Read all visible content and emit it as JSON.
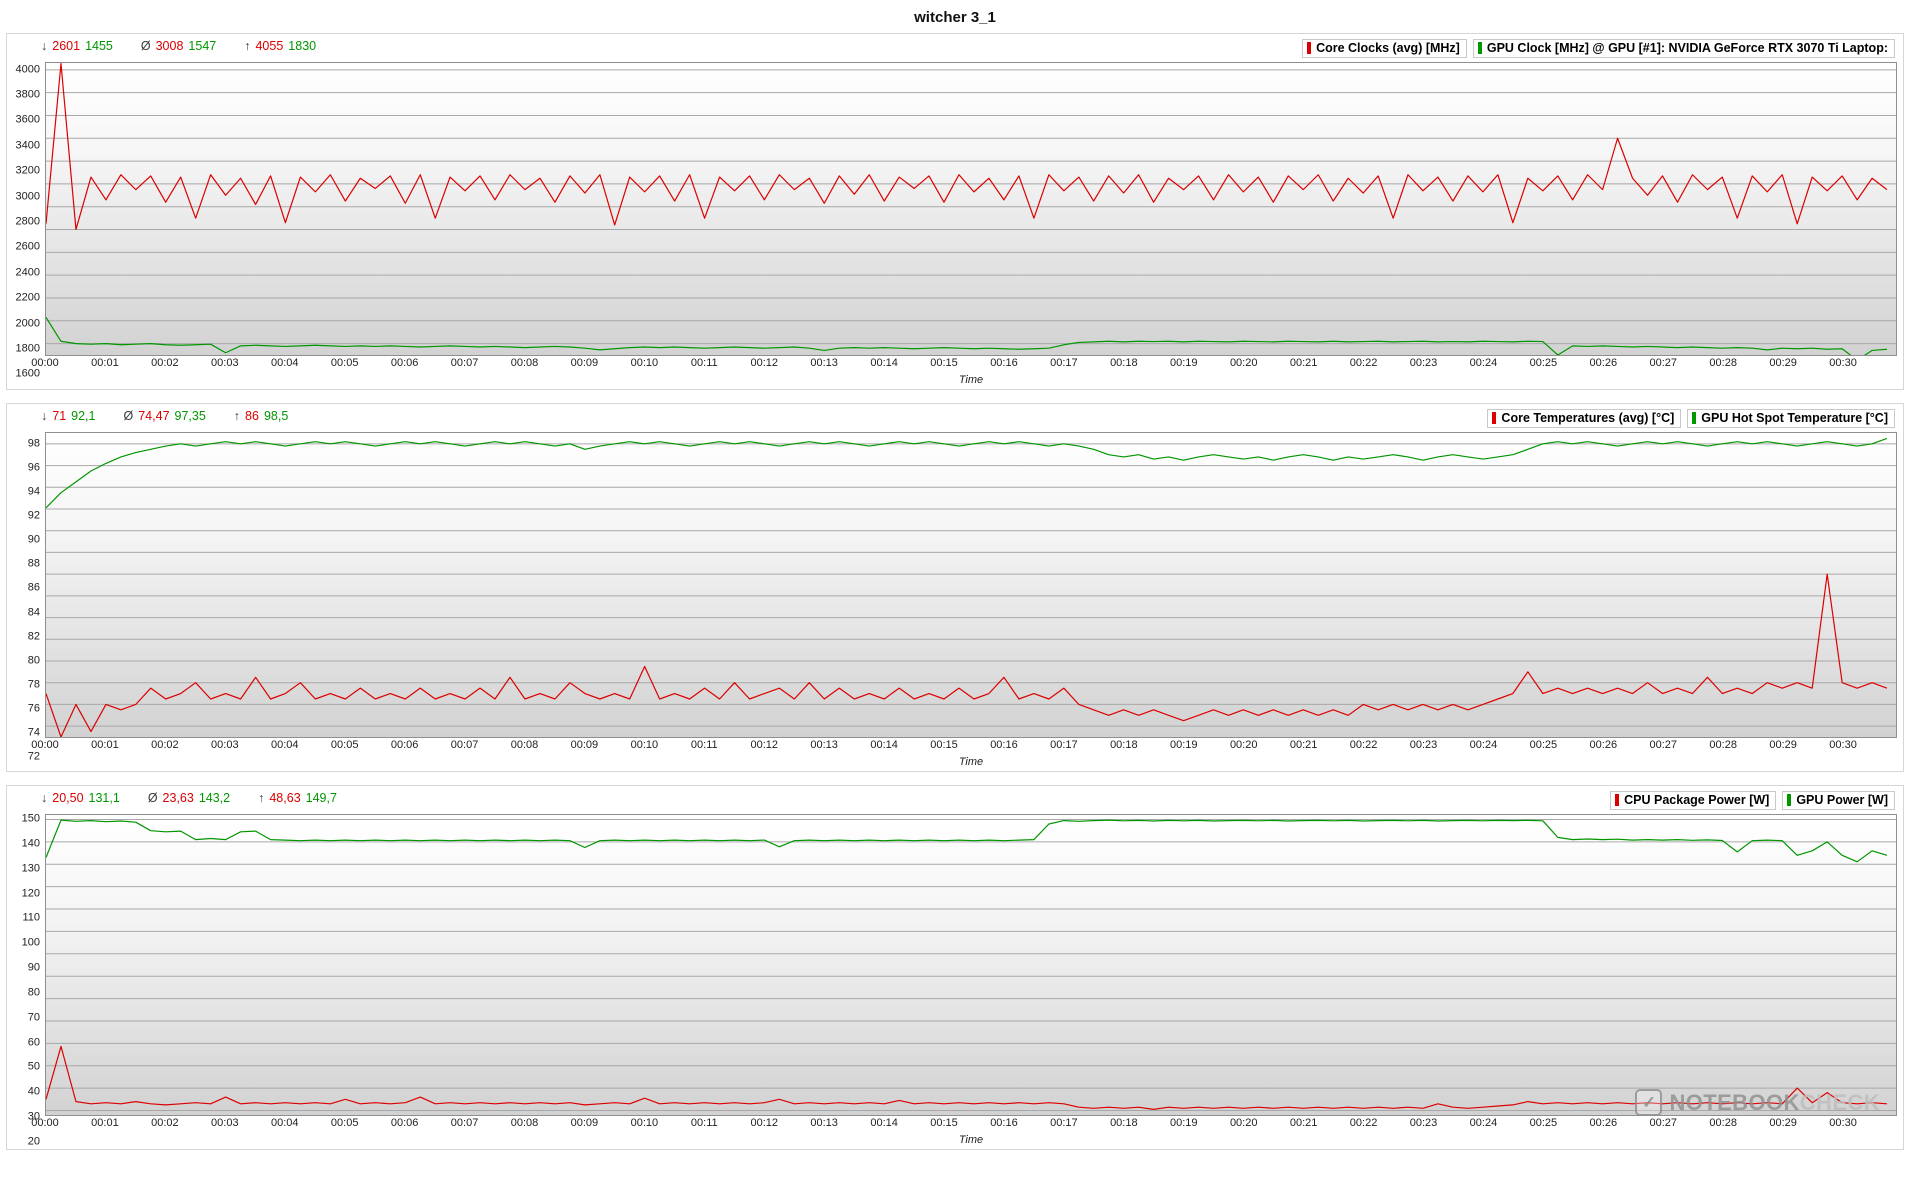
{
  "title": "witcher 3_1",
  "symbols": {
    "min": "↓",
    "avg": "Ø",
    "max": "↑"
  },
  "colors": {
    "red": "#dc0000",
    "green": "#009600",
    "grid": "#a8a8a8"
  },
  "watermark": {
    "logo_glyph": "✓",
    "brand_bold": "NOTEBOOK",
    "brand_light": "CHECK"
  },
  "chart_data": [
    {
      "type": "line",
      "title": "GPU and CPU core clocks",
      "xlabel": "Time",
      "grid": "horizontal",
      "legend_position": "top-right",
      "x_start": 0,
      "x_step": 0.25,
      "x_range": [
        0,
        30.9
      ],
      "x_axis_ticks": [
        "00:00",
        "00:01",
        "00:02",
        "00:03",
        "00:04",
        "00:05",
        "00:06",
        "00:07",
        "00:08",
        "00:09",
        "00:10",
        "00:11",
        "00:12",
        "00:13",
        "00:14",
        "00:15",
        "00:16",
        "00:17",
        "00:18",
        "00:19",
        "00:20",
        "00:21",
        "00:22",
        "00:23",
        "00:24",
        "00:25",
        "00:26",
        "00:27",
        "00:28",
        "00:29",
        "00:30"
      ],
      "y_range": [
        1500,
        4060
      ],
      "y_ticks": [
        1600,
        1800,
        2000,
        2200,
        2400,
        2600,
        2800,
        3000,
        3200,
        3400,
        3600,
        3800,
        4000
      ],
      "stats": {
        "min_red": "2601",
        "min_green": "1455",
        "avg_red": "3008",
        "avg_green": "1547",
        "max_red": "4055",
        "max_green": "1830"
      },
      "series": [
        {
          "name": "Core Clocks (avg) [MHz]",
          "color": "#dc0000",
          "values": [
            2650,
            4055,
            2601,
            3060,
            2860,
            3080,
            2950,
            3070,
            2840,
            3060,
            2700,
            3080,
            2900,
            3050,
            2820,
            3070,
            2660,
            3060,
            2930,
            3080,
            2850,
            3050,
            2960,
            3070,
            2830,
            3080,
            2700,
            3060,
            2940,
            3070,
            2860,
            3080,
            2950,
            3050,
            2840,
            3070,
            2920,
            3080,
            2640,
            3060,
            2930,
            3070,
            2850,
            3080,
            2700,
            3060,
            2940,
            3070,
            2860,
            3080,
            2950,
            3050,
            2830,
            3070,
            2910,
            3080,
            2850,
            3060,
            2960,
            3070,
            2840,
            3080,
            2930,
            3050,
            2860,
            3070,
            2700,
            3080,
            2940,
            3060,
            2850,
            3070,
            2920,
            3080,
            2840,
            3050,
            2950,
            3070,
            2860,
            3080,
            2930,
            3060,
            2840,
            3070,
            2950,
            3080,
            2850,
            3050,
            2920,
            3070,
            2700,
            3080,
            2940,
            3060,
            2850,
            3070,
            2930,
            3080,
            2660,
            3050,
            2940,
            3070,
            2860,
            3080,
            2950,
            3400,
            3050,
            2900,
            3070,
            2840,
            3080,
            2950,
            3060,
            2700,
            3070,
            2930,
            3080,
            2650,
            3060,
            2940,
            3070,
            2860,
            3050,
            2950
          ]
        },
        {
          "name": "GPU Clock [MHz] @ GPU [#1]: NVIDIA GeForce RTX 3070 Ti Laptop:",
          "color": "#009600",
          "values": [
            1830,
            1620,
            1600,
            1595,
            1600,
            1590,
            1595,
            1600,
            1590,
            1585,
            1590,
            1595,
            1520,
            1580,
            1585,
            1580,
            1575,
            1580,
            1585,
            1580,
            1575,
            1580,
            1575,
            1580,
            1575,
            1570,
            1575,
            1580,
            1575,
            1570,
            1575,
            1570,
            1565,
            1570,
            1575,
            1570,
            1560,
            1545,
            1555,
            1565,
            1570,
            1565,
            1570,
            1565,
            1560,
            1565,
            1570,
            1565,
            1560,
            1565,
            1570,
            1560,
            1540,
            1560,
            1565,
            1560,
            1565,
            1560,
            1555,
            1560,
            1565,
            1560,
            1555,
            1560,
            1555,
            1550,
            1555,
            1560,
            1590,
            1610,
            1615,
            1620,
            1615,
            1620,
            1618,
            1620,
            1615,
            1620,
            1618,
            1615,
            1620,
            1618,
            1615,
            1620,
            1618,
            1615,
            1620,
            1615,
            1618,
            1620,
            1615,
            1618,
            1620,
            1615,
            1618,
            1615,
            1620,
            1618,
            1615,
            1620,
            1618,
            1500,
            1580,
            1575,
            1580,
            1575,
            1570,
            1575,
            1570,
            1565,
            1570,
            1565,
            1560,
            1565,
            1560,
            1545,
            1560,
            1555,
            1560,
            1550,
            1555,
            1455,
            1540,
            1550
          ]
        }
      ]
    },
    {
      "type": "line",
      "title": "CPU core and GPU hot spot temperatures",
      "xlabel": "Time",
      "grid": "horizontal",
      "legend_position": "top-right",
      "x_start": 0,
      "x_step": 0.25,
      "x_range": [
        0,
        30.9
      ],
      "x_axis_ticks": [
        "00:00",
        "00:01",
        "00:02",
        "00:03",
        "00:04",
        "00:05",
        "00:06",
        "00:07",
        "00:08",
        "00:09",
        "00:10",
        "00:11",
        "00:12",
        "00:13",
        "00:14",
        "00:15",
        "00:16",
        "00:17",
        "00:18",
        "00:19",
        "00:20",
        "00:21",
        "00:22",
        "00:23",
        "00:24",
        "00:25",
        "00:26",
        "00:27",
        "00:28",
        "00:29",
        "00:30"
      ],
      "y_range": [
        71,
        99
      ],
      "y_ticks": [
        72,
        74,
        76,
        78,
        80,
        82,
        84,
        86,
        88,
        90,
        92,
        94,
        96,
        98
      ],
      "stats": {
        "min_red": "71",
        "min_green": "92,1",
        "avg_red": "74,47",
        "avg_green": "97,35",
        "max_red": "86",
        "max_green": "98,5"
      },
      "series": [
        {
          "name": "Core Temperatures (avg) [°C]",
          "color": "#dc0000",
          "values": [
            75,
            71,
            74,
            71.5,
            74,
            73.5,
            74,
            75.5,
            74.5,
            75,
            76,
            74.5,
            75,
            74.5,
            76.5,
            74.5,
            75,
            76,
            74.5,
            75,
            74.5,
            75.5,
            74.5,
            75,
            74.5,
            75.5,
            74.5,
            75,
            74.5,
            75.5,
            74.5,
            76.5,
            74.5,
            75,
            74.5,
            76,
            75,
            74.5,
            75,
            74.5,
            77.5,
            74.5,
            75,
            74.5,
            75.5,
            74.5,
            76,
            74.5,
            75,
            75.5,
            74.5,
            76,
            74.5,
            75.5,
            74.5,
            75,
            74.5,
            75.5,
            74.5,
            75,
            74.5,
            75.5,
            74.5,
            75,
            76.5,
            74.5,
            75,
            74.5,
            75.5,
            74,
            73.5,
            73,
            73.5,
            73,
            73.5,
            73,
            72.5,
            73,
            73.5,
            73,
            73.5,
            73,
            73.5,
            73,
            73.5,
            73,
            73.5,
            73,
            74,
            73.5,
            74,
            73.5,
            74,
            73.5,
            74,
            73.5,
            74,
            74.5,
            75,
            77,
            75,
            75.5,
            75,
            75.5,
            75,
            75.5,
            75,
            76,
            75,
            75.5,
            75,
            76.5,
            75,
            75.5,
            75,
            76,
            75.5,
            76,
            75.5,
            86,
            76,
            75.5,
            76,
            75.5
          ]
        },
        {
          "name": "GPU Hot Spot Temperature [°C]",
          "color": "#009600",
          "values": [
            92.1,
            93.5,
            94.5,
            95.5,
            96.2,
            96.8,
            97.2,
            97.5,
            97.8,
            98,
            97.8,
            98,
            98.2,
            98,
            98.2,
            98,
            97.8,
            98,
            98.2,
            98,
            98.2,
            98,
            97.8,
            98,
            98.2,
            98,
            98.2,
            98,
            97.8,
            98,
            98.2,
            98,
            98.2,
            98,
            97.8,
            98,
            97.5,
            97.8,
            98,
            98.2,
            98,
            98.2,
            98,
            97.8,
            98,
            98.2,
            98,
            98.2,
            98,
            97.8,
            98,
            98.2,
            98,
            98.2,
            98,
            97.8,
            98,
            98.2,
            98,
            98.2,
            98,
            97.8,
            98,
            98.2,
            98,
            98.2,
            98,
            97.8,
            98,
            97.8,
            97.5,
            97,
            96.8,
            97,
            96.6,
            96.8,
            96.5,
            96.8,
            97,
            96.8,
            96.6,
            96.8,
            96.5,
            96.8,
            97,
            96.8,
            96.5,
            96.8,
            96.6,
            96.8,
            97,
            96.8,
            96.5,
            96.8,
            97,
            96.8,
            96.6,
            96.8,
            97,
            97.5,
            98,
            98.2,
            98,
            98.2,
            98,
            97.8,
            98,
            98.2,
            98,
            98.2,
            98,
            97.8,
            98,
            98.2,
            98,
            98.2,
            98,
            97.8,
            98,
            98.2,
            98,
            97.8,
            98,
            98.5
          ]
        }
      ]
    },
    {
      "type": "line",
      "title": "CPU package power and GPU power",
      "xlabel": "Time",
      "grid": "horizontal",
      "legend_position": "top-right",
      "x_start": 0,
      "x_step": 0.25,
      "x_range": [
        0,
        30.9
      ],
      "x_axis_ticks": [
        "00:00",
        "00:01",
        "00:02",
        "00:03",
        "00:04",
        "00:05",
        "00:06",
        "00:07",
        "00:08",
        "00:09",
        "00:10",
        "00:11",
        "00:12",
        "00:13",
        "00:14",
        "00:15",
        "00:16",
        "00:17",
        "00:18",
        "00:19",
        "00:20",
        "00:21",
        "00:22",
        "00:23",
        "00:24",
        "00:25",
        "00:26",
        "00:27",
        "00:28",
        "00:29",
        "00:30"
      ],
      "y_range": [
        18,
        152
      ],
      "y_ticks": [
        20,
        30,
        40,
        50,
        60,
        70,
        80,
        90,
        100,
        110,
        120,
        130,
        140,
        150
      ],
      "stats": {
        "min_red": "20,50",
        "min_green": "131,1",
        "avg_red": "23,63",
        "avg_green": "143,2",
        "max_red": "48,63",
        "max_green": "149,7"
      },
      "series": [
        {
          "name": "CPU Package Power [W]",
          "color": "#dc0000",
          "values": [
            25,
            48.63,
            24,
            23,
            23.5,
            23,
            24,
            23,
            22.5,
            23,
            23.5,
            23,
            26,
            23,
            23.5,
            23,
            23.5,
            23,
            23.5,
            23,
            25,
            23,
            23.5,
            23,
            23.5,
            26,
            23,
            23.5,
            23,
            23.5,
            23,
            23.5,
            23,
            23.5,
            23,
            23.5,
            22.5,
            23,
            23.5,
            23,
            25.5,
            23,
            23.5,
            23,
            23.5,
            23,
            23.5,
            23,
            23.5,
            25,
            23,
            23.5,
            23,
            23.5,
            23,
            23.5,
            23,
            24.5,
            23,
            23.5,
            23,
            23.5,
            23,
            23.5,
            23,
            23.5,
            23,
            23.5,
            23,
            21.5,
            21,
            21.5,
            21,
            21.5,
            20.5,
            21.5,
            21,
            21.5,
            21,
            21.5,
            21,
            21.5,
            21,
            21.5,
            21,
            21.5,
            21,
            21.5,
            21,
            21.5,
            21,
            21.5,
            21,
            23,
            21.5,
            21,
            21.5,
            22,
            22.5,
            24,
            23,
            23.5,
            23,
            23.5,
            23,
            23.5,
            23,
            23.5,
            23,
            23.5,
            23,
            23.5,
            23,
            23.5,
            23,
            23.5,
            23,
            30,
            23.5,
            28,
            23.5,
            23,
            23.5,
            23
          ]
        },
        {
          "name": "GPU Power [W]",
          "color": "#009600",
          "values": [
            133,
            149.7,
            149.2,
            149.5,
            149,
            149.3,
            148.8,
            145,
            144.5,
            144.8,
            141,
            141.5,
            141,
            144.5,
            144.8,
            141,
            140.8,
            140.5,
            140.8,
            140.5,
            140.8,
            140.5,
            140.8,
            140.5,
            140.8,
            140.5,
            140.8,
            140.5,
            140.8,
            140.5,
            140.8,
            140.5,
            140.8,
            140.5,
            140.8,
            140.5,
            137.5,
            140.5,
            140.8,
            140.5,
            140.8,
            140.5,
            140.8,
            140.5,
            140.8,
            140.5,
            140.8,
            140.5,
            140.8,
            137.8,
            140.5,
            140.8,
            140.5,
            140.8,
            140.5,
            140.8,
            140.5,
            140.8,
            140.5,
            140.8,
            140.5,
            140.8,
            140.5,
            140.8,
            140.5,
            140.8,
            141,
            148,
            149.5,
            149.2,
            149.5,
            149.7,
            149.4,
            149.6,
            149.3,
            149.6,
            149.4,
            149.6,
            149.3,
            149.5,
            149.6,
            149.4,
            149.6,
            149.3,
            149.5,
            149.6,
            149.4,
            149.6,
            149.3,
            149.5,
            149.6,
            149.4,
            149.6,
            149.3,
            149.5,
            149.6,
            149.4,
            149.6,
            149.5,
            149.6,
            149.4,
            142,
            141,
            141.3,
            141,
            141.2,
            140.8,
            141,
            140.8,
            141,
            140.7,
            140.9,
            140.6,
            135.5,
            140.5,
            140.8,
            140.5,
            134,
            136,
            140,
            134,
            131.1,
            136,
            134
          ]
        }
      ]
    }
  ]
}
